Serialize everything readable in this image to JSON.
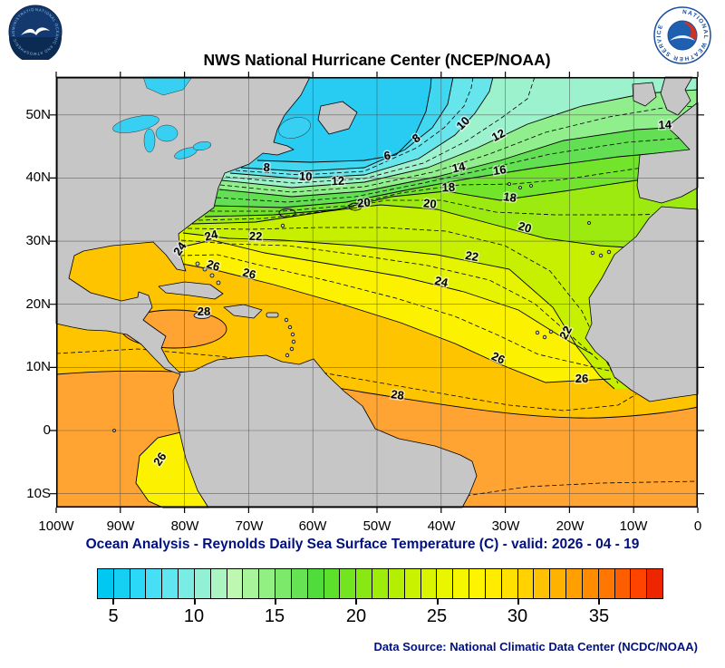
{
  "header": {
    "title": "NWS National Hurricane Center (NCEP/NOAA)",
    "noaa_ring_text": "NATIONAL OCEANIC AND ATMOSPHERIC ADMINISTRATION - U.S. DEPARTMENT OF COMMERCE",
    "nws_ring_text": "NATIONAL WEATHER SERVICE"
  },
  "map": {
    "lat_labels": [
      "50N",
      "40N",
      "30N",
      "20N",
      "10N",
      "0",
      "10S"
    ],
    "lon_labels": [
      "100W",
      "90W",
      "80W",
      "70W",
      "60W",
      "50W",
      "40W",
      "30W",
      "20W",
      "10W",
      "0"
    ],
    "contour_labels": [
      "6",
      "8",
      "8",
      "10",
      "10",
      "12",
      "12",
      "14",
      "14",
      "16",
      "18",
      "18",
      "20",
      "20",
      "20",
      "22",
      "22",
      "22",
      "24",
      "24",
      "24",
      "26",
      "26",
      "26",
      "26",
      "26",
      "28",
      "28"
    ]
  },
  "caption": "Ocean Analysis - Reynolds Daily Sea Surface Temperature (C) - valid: 2026 - 04 - 19",
  "colorbar": {
    "ticks": [
      "5",
      "10",
      "15",
      "20",
      "25",
      "30",
      "35"
    ],
    "colors": [
      "#00C8F0",
      "#16D0F4",
      "#2CD8F8",
      "#46DFF6",
      "#60E6F0",
      "#7AECE4",
      "#92F1D4",
      "#AAF5C2",
      "#BEF8B0",
      "#A8F49A",
      "#92EF82",
      "#7CE96A",
      "#66E352",
      "#50DC3A",
      "#5CE02C",
      "#72E420",
      "#88E814",
      "#9EEC0A",
      "#B4EF02",
      "#C8F200",
      "#DAF400",
      "#EAF600",
      "#F6F600",
      "#FFF400",
      "#FFEC00",
      "#FFE000",
      "#FFD200",
      "#FFC200",
      "#FFB200",
      "#FFA000",
      "#FF8C00",
      "#FF7600",
      "#FF5E00",
      "#FF4400",
      "#EE2600"
    ]
  },
  "footer": "Data Source: National Climatic Data Center (NCDC/NOAA)",
  "chart_data": {
    "type": "heatmap",
    "title": "NWS National Hurricane Center (NCEP/NOAA)",
    "subtitle": "Ocean Analysis - Reynolds Daily Sea Surface Temperature (C) - valid: 2026 - 04 - 19",
    "variable": "Reynolds Daily Sea Surface Temperature",
    "units": "C",
    "valid_date": "2026 - 04 - 19",
    "region": {
      "lat_span": [
        "10S",
        "55N"
      ],
      "lon_span": [
        "100W",
        "0"
      ]
    },
    "x_ticks": [
      "100W",
      "90W",
      "80W",
      "70W",
      "60W",
      "50W",
      "40W",
      "30W",
      "20W",
      "10W",
      "0"
    ],
    "y_ticks": [
      "50N",
      "40N",
      "30N",
      "20N",
      "10N",
      "0",
      "10S"
    ],
    "labeled_contours_c": [
      6,
      8,
      10,
      12,
      14,
      16,
      18,
      20,
      22,
      24,
      26,
      28
    ],
    "colorbar_ticks_c": [
      5,
      10,
      15,
      20,
      25,
      30,
      35
    ],
    "colorbar_range_c": [
      4,
      39
    ],
    "legend_position": "bottom",
    "grid": true,
    "source": "National Climatic Data Center (NCDC/NOAA)"
  }
}
